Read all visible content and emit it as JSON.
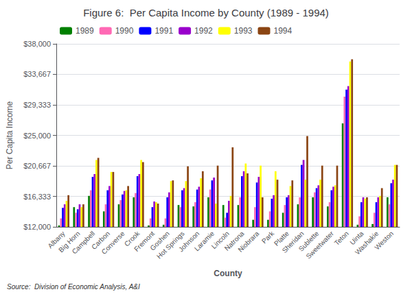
{
  "chart_data": {
    "type": "bar",
    "title": "Figure 6:  Per Capita Income by County (1989 - 1994)",
    "xlabel": "County",
    "ylabel": "Per Capita Income",
    "annotations": [
      "Source:  Division of Economic Analysis, A&I"
    ],
    "categories": [
      "Albany",
      "Big Horn",
      "Campbell",
      "Carbon",
      "Converse",
      "Crook",
      "Fremont",
      "Goshen",
      "Hot Springs",
      "Johnson",
      "Laramie",
      "Lincoln",
      "Natrona",
      "Niobrara",
      "Park",
      "Platte",
      "Sheridan",
      "Sublette",
      "Sweetwater",
      "Teton",
      "Uinta",
      "Washakie",
      "Weston"
    ],
    "series": [
      {
        "name": "1989",
        "color": "#008000",
        "values": [
          12200,
          14800,
          16400,
          14200,
          15200,
          16200,
          12200,
          12300,
          15100,
          14900,
          16200,
          15100,
          15100,
          13000,
          13000,
          14000,
          15200,
          16200,
          14900,
          26700,
          12300,
          12400,
          16200
        ]
      },
      {
        "name": "1990",
        "color": "#ff69b4",
        "values": [
          13200,
          14000,
          17200,
          15200,
          15800,
          16800,
          13200,
          13200,
          14800,
          15500,
          17300,
          13300,
          16200,
          14800,
          14200,
          15100,
          16200,
          16900,
          15500,
          30500,
          13500,
          14000,
          15200
        ]
      },
      {
        "name": "1991",
        "color": "#0000ff",
        "values": [
          14700,
          14500,
          19100,
          17200,
          16600,
          19200,
          14800,
          16200,
          17200,
          17300,
          18600,
          14000,
          19200,
          18300,
          16000,
          16200,
          20800,
          17500,
          17200,
          31500,
          15500,
          15500,
          18200
        ]
      },
      {
        "name": "1992",
        "color": "#9900cc",
        "values": [
          15200,
          15200,
          19500,
          17800,
          17100,
          19500,
          15600,
          16900,
          17500,
          17700,
          19000,
          15700,
          19900,
          19100,
          16500,
          16500,
          21500,
          17900,
          17700,
          32000,
          16200,
          16200,
          18700
        ]
      },
      {
        "name": "1993",
        "color": "#ffff00",
        "values": [
          15700,
          14800,
          21500,
          19800,
          17200,
          21500,
          15500,
          18500,
          18500,
          18900,
          15300,
          16400,
          21000,
          20700,
          19900,
          17800,
          18700,
          18700,
          17900,
          35500,
          16000,
          16400,
          20800
        ]
      },
      {
        "name": "1994",
        "color": "#8B4513",
        "values": [
          16500,
          15200,
          21800,
          19800,
          17800,
          21200,
          15300,
          18600,
          20600,
          19900,
          20700,
          23300,
          19600,
          16200,
          18700,
          18600,
          24900,
          20700,
          20700,
          35800,
          16200,
          17500,
          20800
        ]
      }
    ],
    "ylim": [
      12000,
      38000
    ],
    "yticks": [
      {
        "value": 12000,
        "label": "$12,000"
      },
      {
        "value": 16333,
        "label": "$16,333"
      },
      {
        "value": 20667,
        "label": "$20,667"
      },
      {
        "value": 25000,
        "label": "$25,000"
      },
      {
        "value": 29333,
        "label": "$29,333"
      },
      {
        "value": 33667,
        "label": "$33,667"
      },
      {
        "value": 38000,
        "label": "$38,000"
      }
    ],
    "grid": true,
    "legend": "upper left"
  }
}
